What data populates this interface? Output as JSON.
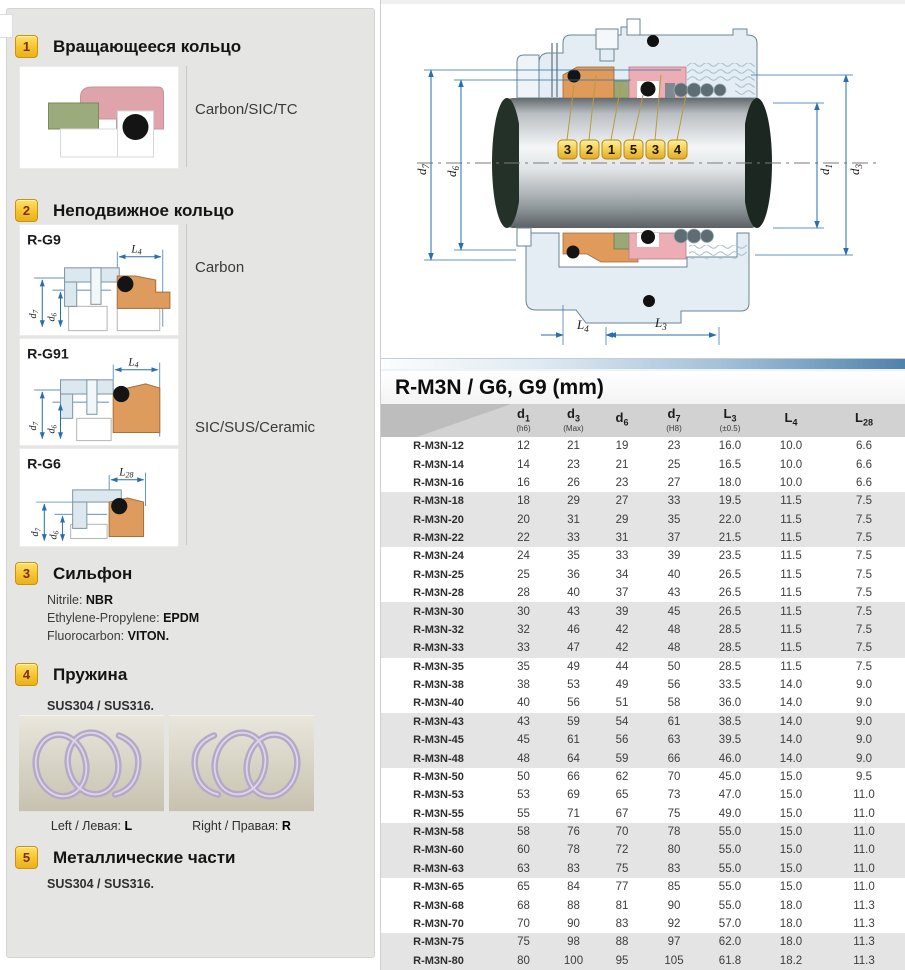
{
  "sidebar": {
    "sections": [
      {
        "num": "1",
        "title": "Вращающееся кольцо",
        "material": "Carbon/SIC/TC"
      },
      {
        "num": "2",
        "title": "Неподвижное кольцо",
        "variants": [
          {
            "name": "R-G9",
            "dim_main": "L",
            "dim_sub": "4",
            "material": "Carbon"
          },
          {
            "name": "R-G91",
            "dim_main": "L",
            "dim_sub": "4"
          },
          {
            "name": "R-G6",
            "dim_main": "L",
            "dim_sub": "28"
          }
        ],
        "material": "SIC/SUS/Ceramic"
      },
      {
        "num": "3",
        "title": "Сильфон",
        "materials": [
          {
            "label": "Nitrile:",
            "value": "NBR"
          },
          {
            "label": "Ethylene-Propylene:",
            "value": "EPDM"
          },
          {
            "label": "Fluorocarbon:",
            "value": "VITON."
          }
        ]
      },
      {
        "num": "4",
        "title": "Пружина",
        "subtitle": "SUS304 / SUS316.",
        "springs": [
          {
            "caption": "Left / Левая:",
            "letter": "L"
          },
          {
            "caption": "Right / Правая:",
            "letter": "R"
          }
        ]
      },
      {
        "num": "5",
        "title": "Металлические части",
        "subtitle": "SUS304 / SUS316."
      }
    ]
  },
  "diagram": {
    "tags": [
      "3",
      "2",
      "1",
      "5",
      "3",
      "4"
    ],
    "dim_left": [
      {
        "main": "d",
        "sub": "7"
      },
      {
        "main": "d",
        "sub": "6"
      }
    ],
    "dim_right": [
      {
        "main": "d",
        "sub": "1"
      },
      {
        "main": "d",
        "sub": "3"
      }
    ],
    "dim_bottom": [
      {
        "main": "L",
        "sub": "4"
      },
      {
        "main": "L",
        "sub": "3"
      }
    ]
  },
  "table": {
    "title": "R-M3N / G6, G9 (mm)",
    "headers": [
      {
        "main": "d",
        "sub": "1",
        "note": "(h6)"
      },
      {
        "main": "d",
        "sub": "3",
        "note": "(Max)"
      },
      {
        "main": "d",
        "sub": "6",
        "note": ""
      },
      {
        "main": "d",
        "sub": "7",
        "note": "(H8)"
      },
      {
        "main": "L",
        "sub": "3",
        "note": "(±0.5)"
      },
      {
        "main": "L",
        "sub": "4",
        "note": ""
      },
      {
        "main": "L",
        "sub": "28",
        "note": ""
      }
    ],
    "rows": [
      [
        "R-M3N-12",
        "12",
        "21",
        "19",
        "23",
        "16.0",
        "10.0",
        "6.6"
      ],
      [
        "R-M3N-14",
        "14",
        "23",
        "21",
        "25",
        "16.5",
        "10.0",
        "6.6"
      ],
      [
        "R-M3N-16",
        "16",
        "26",
        "23",
        "27",
        "18.0",
        "10.0",
        "6.6"
      ],
      [
        "R-M3N-18",
        "18",
        "29",
        "27",
        "33",
        "19.5",
        "11.5",
        "7.5"
      ],
      [
        "R-M3N-20",
        "20",
        "31",
        "29",
        "35",
        "22.0",
        "11.5",
        "7.5"
      ],
      [
        "R-M3N-22",
        "22",
        "33",
        "31",
        "37",
        "21.5",
        "11.5",
        "7.5"
      ],
      [
        "R-M3N-24",
        "24",
        "35",
        "33",
        "39",
        "23.5",
        "11.5",
        "7.5"
      ],
      [
        "R-M3N-25",
        "25",
        "36",
        "34",
        "40",
        "26.5",
        "11.5",
        "7.5"
      ],
      [
        "R-M3N-28",
        "28",
        "40",
        "37",
        "43",
        "26.5",
        "11.5",
        "7.5"
      ],
      [
        "R-M3N-30",
        "30",
        "43",
        "39",
        "45",
        "26.5",
        "11.5",
        "7.5"
      ],
      [
        "R-M3N-32",
        "32",
        "46",
        "42",
        "48",
        "28.5",
        "11.5",
        "7.5"
      ],
      [
        "R-M3N-33",
        "33",
        "47",
        "42",
        "48",
        "28.5",
        "11.5",
        "7.5"
      ],
      [
        "R-M3N-35",
        "35",
        "49",
        "44",
        "50",
        "28.5",
        "11.5",
        "7.5"
      ],
      [
        "R-M3N-38",
        "38",
        "53",
        "49",
        "56",
        "33.5",
        "14.0",
        "9.0"
      ],
      [
        "R-M3N-40",
        "40",
        "56",
        "51",
        "58",
        "36.0",
        "14.0",
        "9.0"
      ],
      [
        "R-M3N-43",
        "43",
        "59",
        "54",
        "61",
        "38.5",
        "14.0",
        "9.0"
      ],
      [
        "R-M3N-45",
        "45",
        "61",
        "56",
        "63",
        "39.5",
        "14.0",
        "9.0"
      ],
      [
        "R-M3N-48",
        "48",
        "64",
        "59",
        "66",
        "46.0",
        "14.0",
        "9.0"
      ],
      [
        "R-M3N-50",
        "50",
        "66",
        "62",
        "70",
        "45.0",
        "15.0",
        "9.5"
      ],
      [
        "R-M3N-53",
        "53",
        "69",
        "65",
        "73",
        "47.0",
        "15.0",
        "11.0"
      ],
      [
        "R-M3N-55",
        "55",
        "71",
        "67",
        "75",
        "49.0",
        "15.0",
        "11.0"
      ],
      [
        "R-M3N-58",
        "58",
        "76",
        "70",
        "78",
        "55.0",
        "15.0",
        "11.0"
      ],
      [
        "R-M3N-60",
        "60",
        "78",
        "72",
        "80",
        "55.0",
        "15.0",
        "11.0"
      ],
      [
        "R-M3N-63",
        "63",
        "83",
        "75",
        "83",
        "55.0",
        "15.0",
        "11.0"
      ],
      [
        "R-M3N-65",
        "65",
        "84",
        "77",
        "85",
        "55.0",
        "15.0",
        "11.0"
      ],
      [
        "R-M3N-68",
        "68",
        "88",
        "81",
        "90",
        "55.0",
        "18.0",
        "11.3"
      ],
      [
        "R-M3N-70",
        "70",
        "90",
        "83",
        "92",
        "57.0",
        "18.0",
        "11.3"
      ],
      [
        "R-M3N-75",
        "75",
        "98",
        "88",
        "97",
        "62.0",
        "18.0",
        "11.3"
      ],
      [
        "R-M3N-80",
        "80",
        "100",
        "95",
        "105",
        "61.8",
        "18.2",
        "11.3"
      ]
    ]
  },
  "colors": {
    "sidebar_bg": "#e5e5e3",
    "badge_yellow": "#f5c42c",
    "dimension_blue": "#2a6fad",
    "ring_pink": "#ecadb4",
    "seat_orange": "#e09a5a",
    "ring_green": "#9aa878",
    "housing_blue": "#e3edf3",
    "spring_purple": "#b5a8c8",
    "band_gray": "#e4e4e4"
  }
}
